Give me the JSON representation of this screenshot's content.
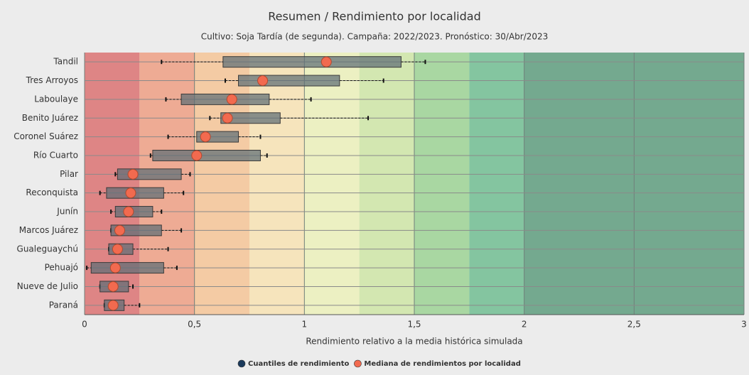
{
  "chart_data": {
    "type": "boxplot",
    "orientation": "horizontal",
    "title": "Resumen / Rendimiento por localidad",
    "subtitle": "Cultivo: Soja Tardía (de segunda). Campaña: 2022/2023. Pronóstico: 30/Abr/2023",
    "x_label": "Rendimiento relativo a la media histórica simulada",
    "categories": [
      "Tandil",
      "Tres Arroyos",
      "Laboulaye",
      "Benito Juárez",
      "Coronel Suárez",
      "Río Cuarto",
      "Pilar",
      "Reconquista",
      "Junín",
      "Marcos Juárez",
      "Gualeguaychú",
      "Pehuajó",
      "Nueve de Julio",
      "Paraná"
    ],
    "min": [
      0.35,
      0.64,
      0.37,
      0.57,
      0.38,
      0.3,
      0.14,
      0.07,
      0.12,
      0.12,
      0.11,
      0.01,
      0.07,
      0.09
    ],
    "q1": [
      0.63,
      0.7,
      0.44,
      0.62,
      0.51,
      0.31,
      0.15,
      0.1,
      0.14,
      0.12,
      0.11,
      0.03,
      0.07,
      0.09
    ],
    "median": [
      1.1,
      0.81,
      0.67,
      0.65,
      0.55,
      0.51,
      0.22,
      0.21,
      0.2,
      0.16,
      0.15,
      0.14,
      0.13,
      0.13
    ],
    "q3": [
      1.44,
      1.16,
      0.84,
      0.89,
      0.7,
      0.8,
      0.44,
      0.36,
      0.31,
      0.35,
      0.22,
      0.36,
      0.2,
      0.18
    ],
    "max": [
      1.55,
      1.36,
      1.03,
      1.29,
      0.8,
      0.83,
      0.48,
      0.45,
      0.35,
      0.44,
      0.38,
      0.42,
      0.22,
      0.25
    ],
    "legend": [
      {
        "name": "Cuantiles de rendimiento",
        "color": "#1b3a5c"
      },
      {
        "name": "Mediana de rendimientos por localidad",
        "color": "#f26a4f"
      }
    ],
    "box_color": "#5e6e76",
    "xlim": [
      0,
      3
    ],
    "xticks": [
      0,
      {
        "value": 0.5,
        "label": "0,5"
      },
      1,
      {
        "value": 1.5,
        "label": "1,5"
      },
      2,
      {
        "value": 2.5,
        "label": "2,5"
      },
      3
    ],
    "bands": [
      {
        "from": 0,
        "to": 0.25,
        "color": "#de8585"
      },
      {
        "from": 0.25,
        "to": 0.5,
        "color": "#eeab94"
      },
      {
        "from": 0.5,
        "to": 0.75,
        "color": "#f4cba4"
      },
      {
        "from": 0.75,
        "to": 1,
        "color": "#f6e4bc"
      },
      {
        "from": 1,
        "to": 1.25,
        "color": "#ecf0c2"
      },
      {
        "from": 1.25,
        "to": 1.5,
        "color": "#d3e7b1"
      },
      {
        "from": 1.5,
        "to": 1.75,
        "color": "#a9d7a2"
      },
      {
        "from": 1.75,
        "to": 2,
        "color": "#84c5a0"
      },
      {
        "from": 2,
        "to": 3,
        "color": "#74a98f"
      }
    ],
    "grid": true
  }
}
